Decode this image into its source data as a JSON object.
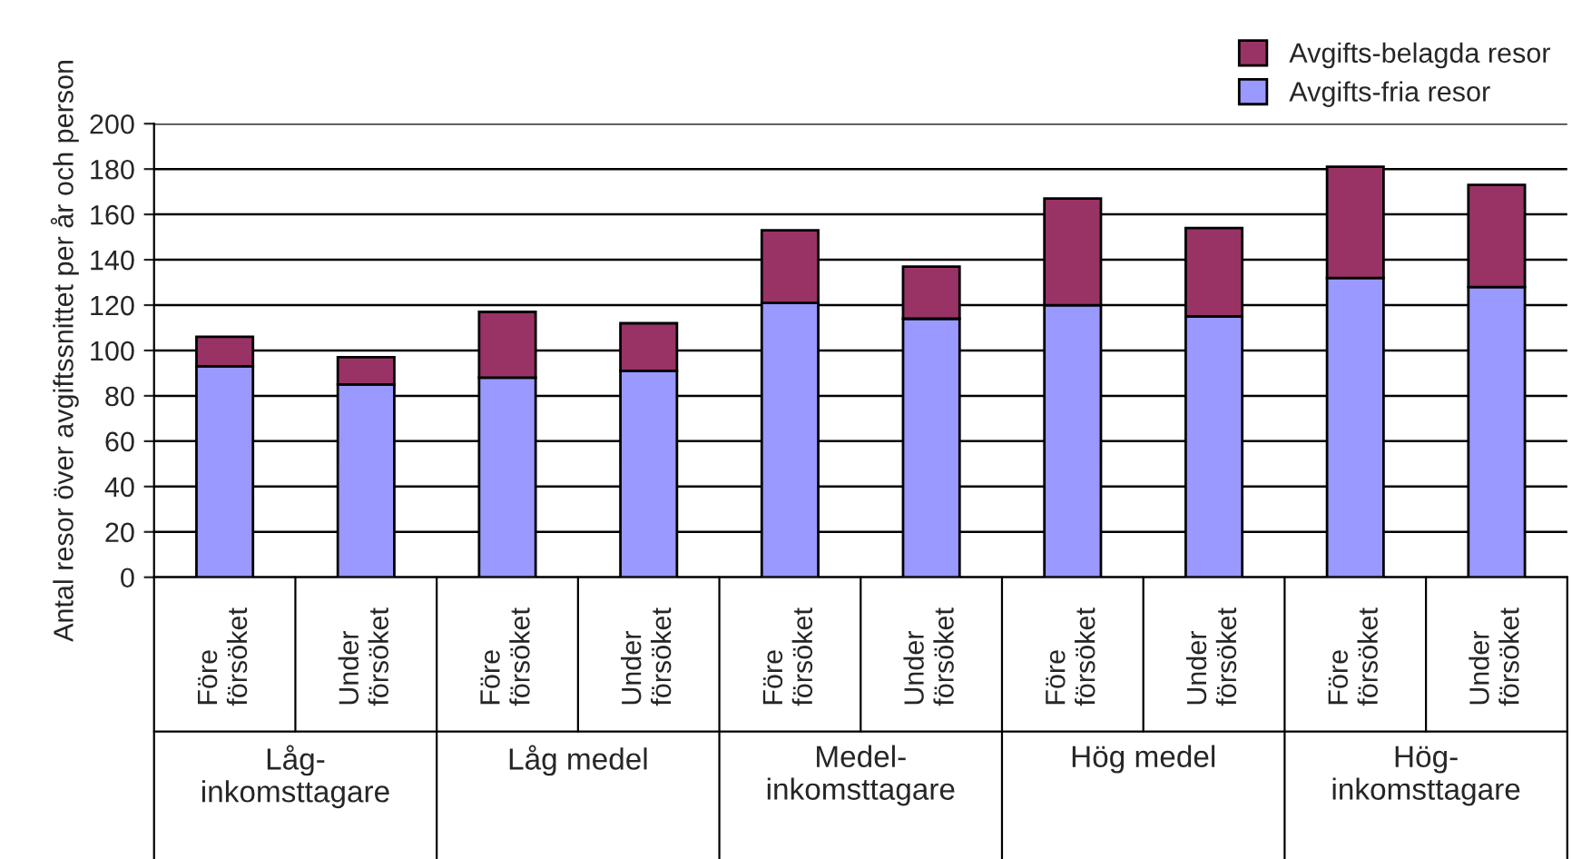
{
  "chart_data": {
    "type": "bar",
    "stacked": true,
    "ylabel": "Antal resor över avgiftssnittet per år och person",
    "categories": [
      "Före\nförsöket",
      "Under\nförsöket",
      "Före\nförsöket",
      "Under\nförsöket",
      "Före\nförsöket",
      "Under\nförsöket",
      "Före\nförsöket",
      "Under\nförsöket",
      "Före\nförsöket",
      "Under\nförsöket"
    ],
    "annotations": [
      "Låg-\ninkomsttagare",
      "Låg medel",
      "Medel-\ninkomsttagare",
      "Hög medel",
      "Hög-\ninkomsttagare"
    ],
    "series": [
      {
        "name": "Avgifts-fria resor",
        "color": "#9999ff",
        "values": [
          93,
          85,
          88,
          91,
          121,
          114,
          120,
          115,
          132,
          128
        ]
      },
      {
        "name": "Avgifts-belagda resor",
        "color": "#993366",
        "values": [
          13,
          12,
          29,
          21,
          32,
          23,
          47,
          39,
          49,
          45
        ]
      }
    ],
    "ylim": [
      0,
      200
    ],
    "yticks": [
      0,
      20,
      40,
      60,
      80,
      100,
      120,
      140,
      160,
      180,
      200
    ],
    "grid": "y",
    "legend": "top right"
  }
}
